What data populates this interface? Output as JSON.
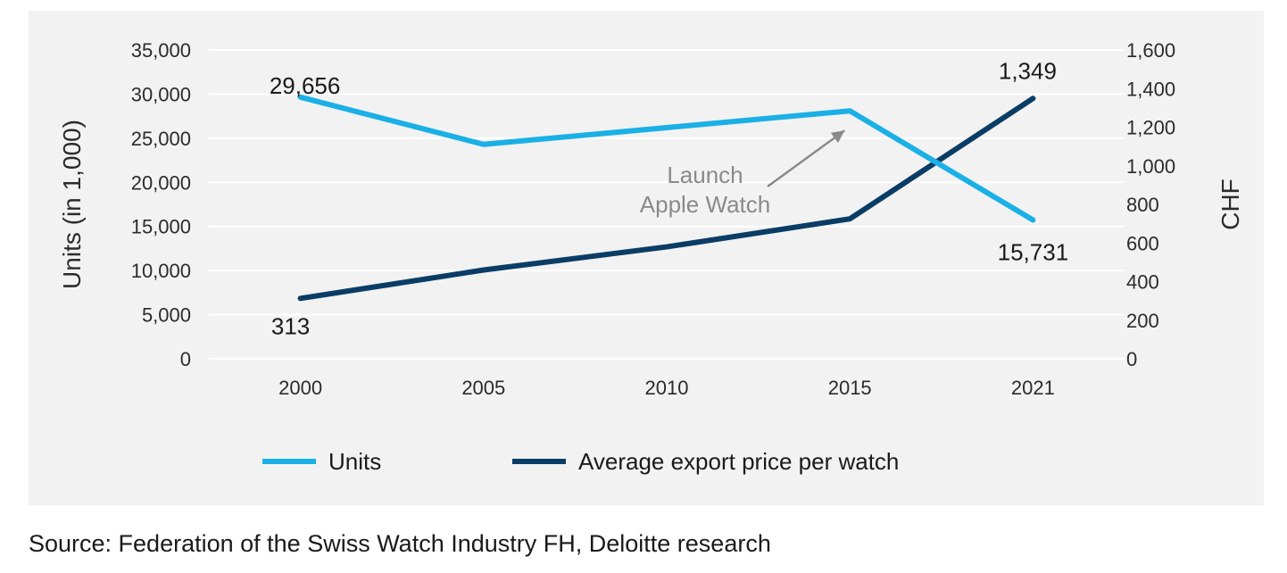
{
  "chart_data": {
    "type": "line",
    "categories": [
      "2000",
      "2005",
      "2010",
      "2015",
      "2021"
    ],
    "series": [
      {
        "name": "Units",
        "axis": "left",
        "values": [
          29656,
          24300,
          26200,
          28100,
          15731
        ],
        "color": "#1ab0e6"
      },
      {
        "name": "Average export price per watch",
        "axis": "right",
        "values": [
          313,
          460,
          580,
          725,
          1349
        ],
        "color": "#0a3d66"
      }
    ],
    "ylabel_left": "Units (in 1,000)",
    "ylabel_right": "CHF",
    "ylim_left": [
      0,
      35000
    ],
    "ylim_right": [
      0,
      1600
    ],
    "yticks_left": [
      "0",
      "5,000",
      "10,000",
      "15,000",
      "20,000",
      "25,000",
      "30,000",
      "35,000"
    ],
    "yticks_right": [
      "0",
      "200",
      "400",
      "600",
      "800",
      "1,000",
      "1,200",
      "1,400",
      "1,600"
    ],
    "data_labels": [
      {
        "series": 0,
        "index": 0,
        "text": "29,656"
      },
      {
        "series": 0,
        "index": 4,
        "text": "15,731"
      },
      {
        "series": 1,
        "index": 0,
        "text": "313"
      },
      {
        "series": 1,
        "index": 4,
        "text": "1,349"
      }
    ],
    "annotation": {
      "lines": [
        "Launch",
        "Apple Watch"
      ],
      "target_series": 0,
      "target_index": 3
    },
    "legend": [
      "Units",
      "Average export price per watch"
    ],
    "grid": true,
    "legend_position": "bottom"
  },
  "source": "Source: Federation of the Swiss Watch Industry FH, Deloitte research"
}
